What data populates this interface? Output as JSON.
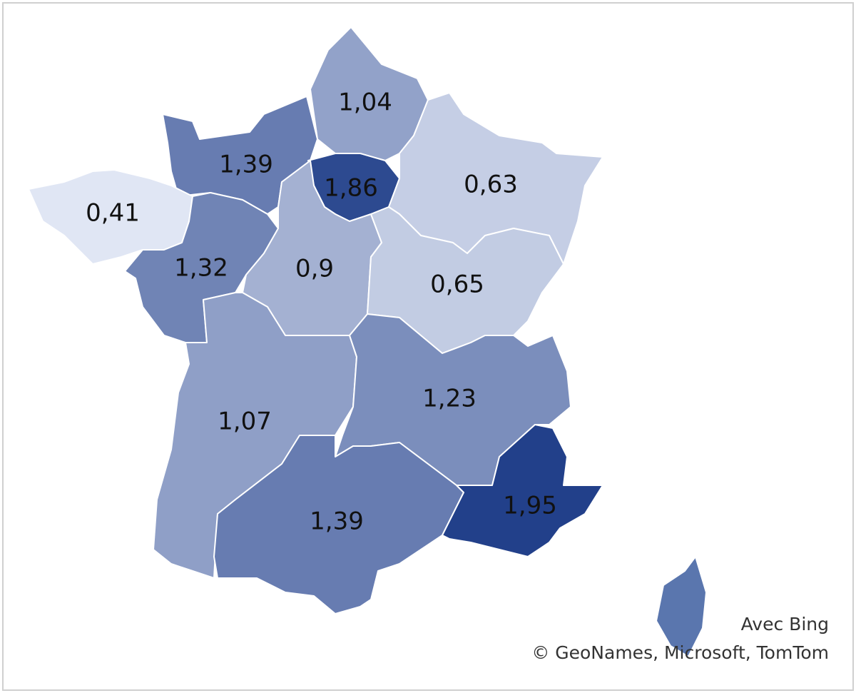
{
  "chart_data": {
    "type": "choropleth",
    "values": [
      1.04,
      1.39,
      1.86,
      0.63,
      0.41,
      1.32,
      0.9,
      0.65,
      1.07,
      1.23,
      1.39,
      1.95
    ],
    "value_labels": [
      "1,04",
      "1,39",
      "1,86",
      "0,63",
      "0,41",
      "1,32",
      "0,9",
      "0,65",
      "1,07",
      "1,23",
      "1,39",
      "1,95"
    ],
    "colors": [
      "#e0e6f4",
      "#22408a"
    ],
    "attribution": [
      "Avec Bing",
      "© GeoNames, Microsoft, TomTom"
    ]
  }
}
